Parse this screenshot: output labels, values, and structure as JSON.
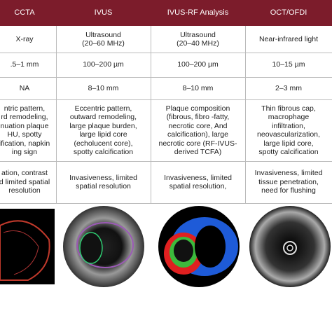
{
  "table": {
    "header": [
      "CCTA",
      "IVUS",
      "IVUS-RF Analysis",
      "OCT/OFDI"
    ],
    "rows": [
      [
        "X-ray",
        "Ultrasound\n(20–60 MHz)",
        "Ultrasound\n(20–40 MHz)",
        "Near-infrared light"
      ],
      [
        ".5–1 mm",
        "100–200 µm",
        "100–200 µm",
        "10–15 µm"
      ],
      [
        "NA",
        "8–10 mm",
        "8–10 mm",
        "2–3 mm"
      ],
      [
        "ntric pattern,\nrd remodeling,\nnuation plaque\nHU, spotty\nification, napkin\ning sign",
        "Eccentric pattern,\noutward remodeling,\nlarge plaque burden,\nlarge lipid core\n(echolucent core),\nspotty calcification",
        "Plaque composition\n(fibrous, fibro -fatty,\nnecrotic core, And\ncalcification), large\nnecrotic core (RF-IVUS-\nderived TCFA)",
        "Thin fibrous cap,\nmacrophage\ninfiltration,\nneovascularization,\nlarge lipid core,\nspotty calcification"
      ],
      [
        "ation, contrast\nd limited spatial\nresolution",
        "Invasiveness, limited\nspatial resolution",
        "Invasiveness, limited\nspatial resolution,",
        "Invasiveness, limited\ntissue penetration,\nneed for flushing"
      ]
    ]
  }
}
